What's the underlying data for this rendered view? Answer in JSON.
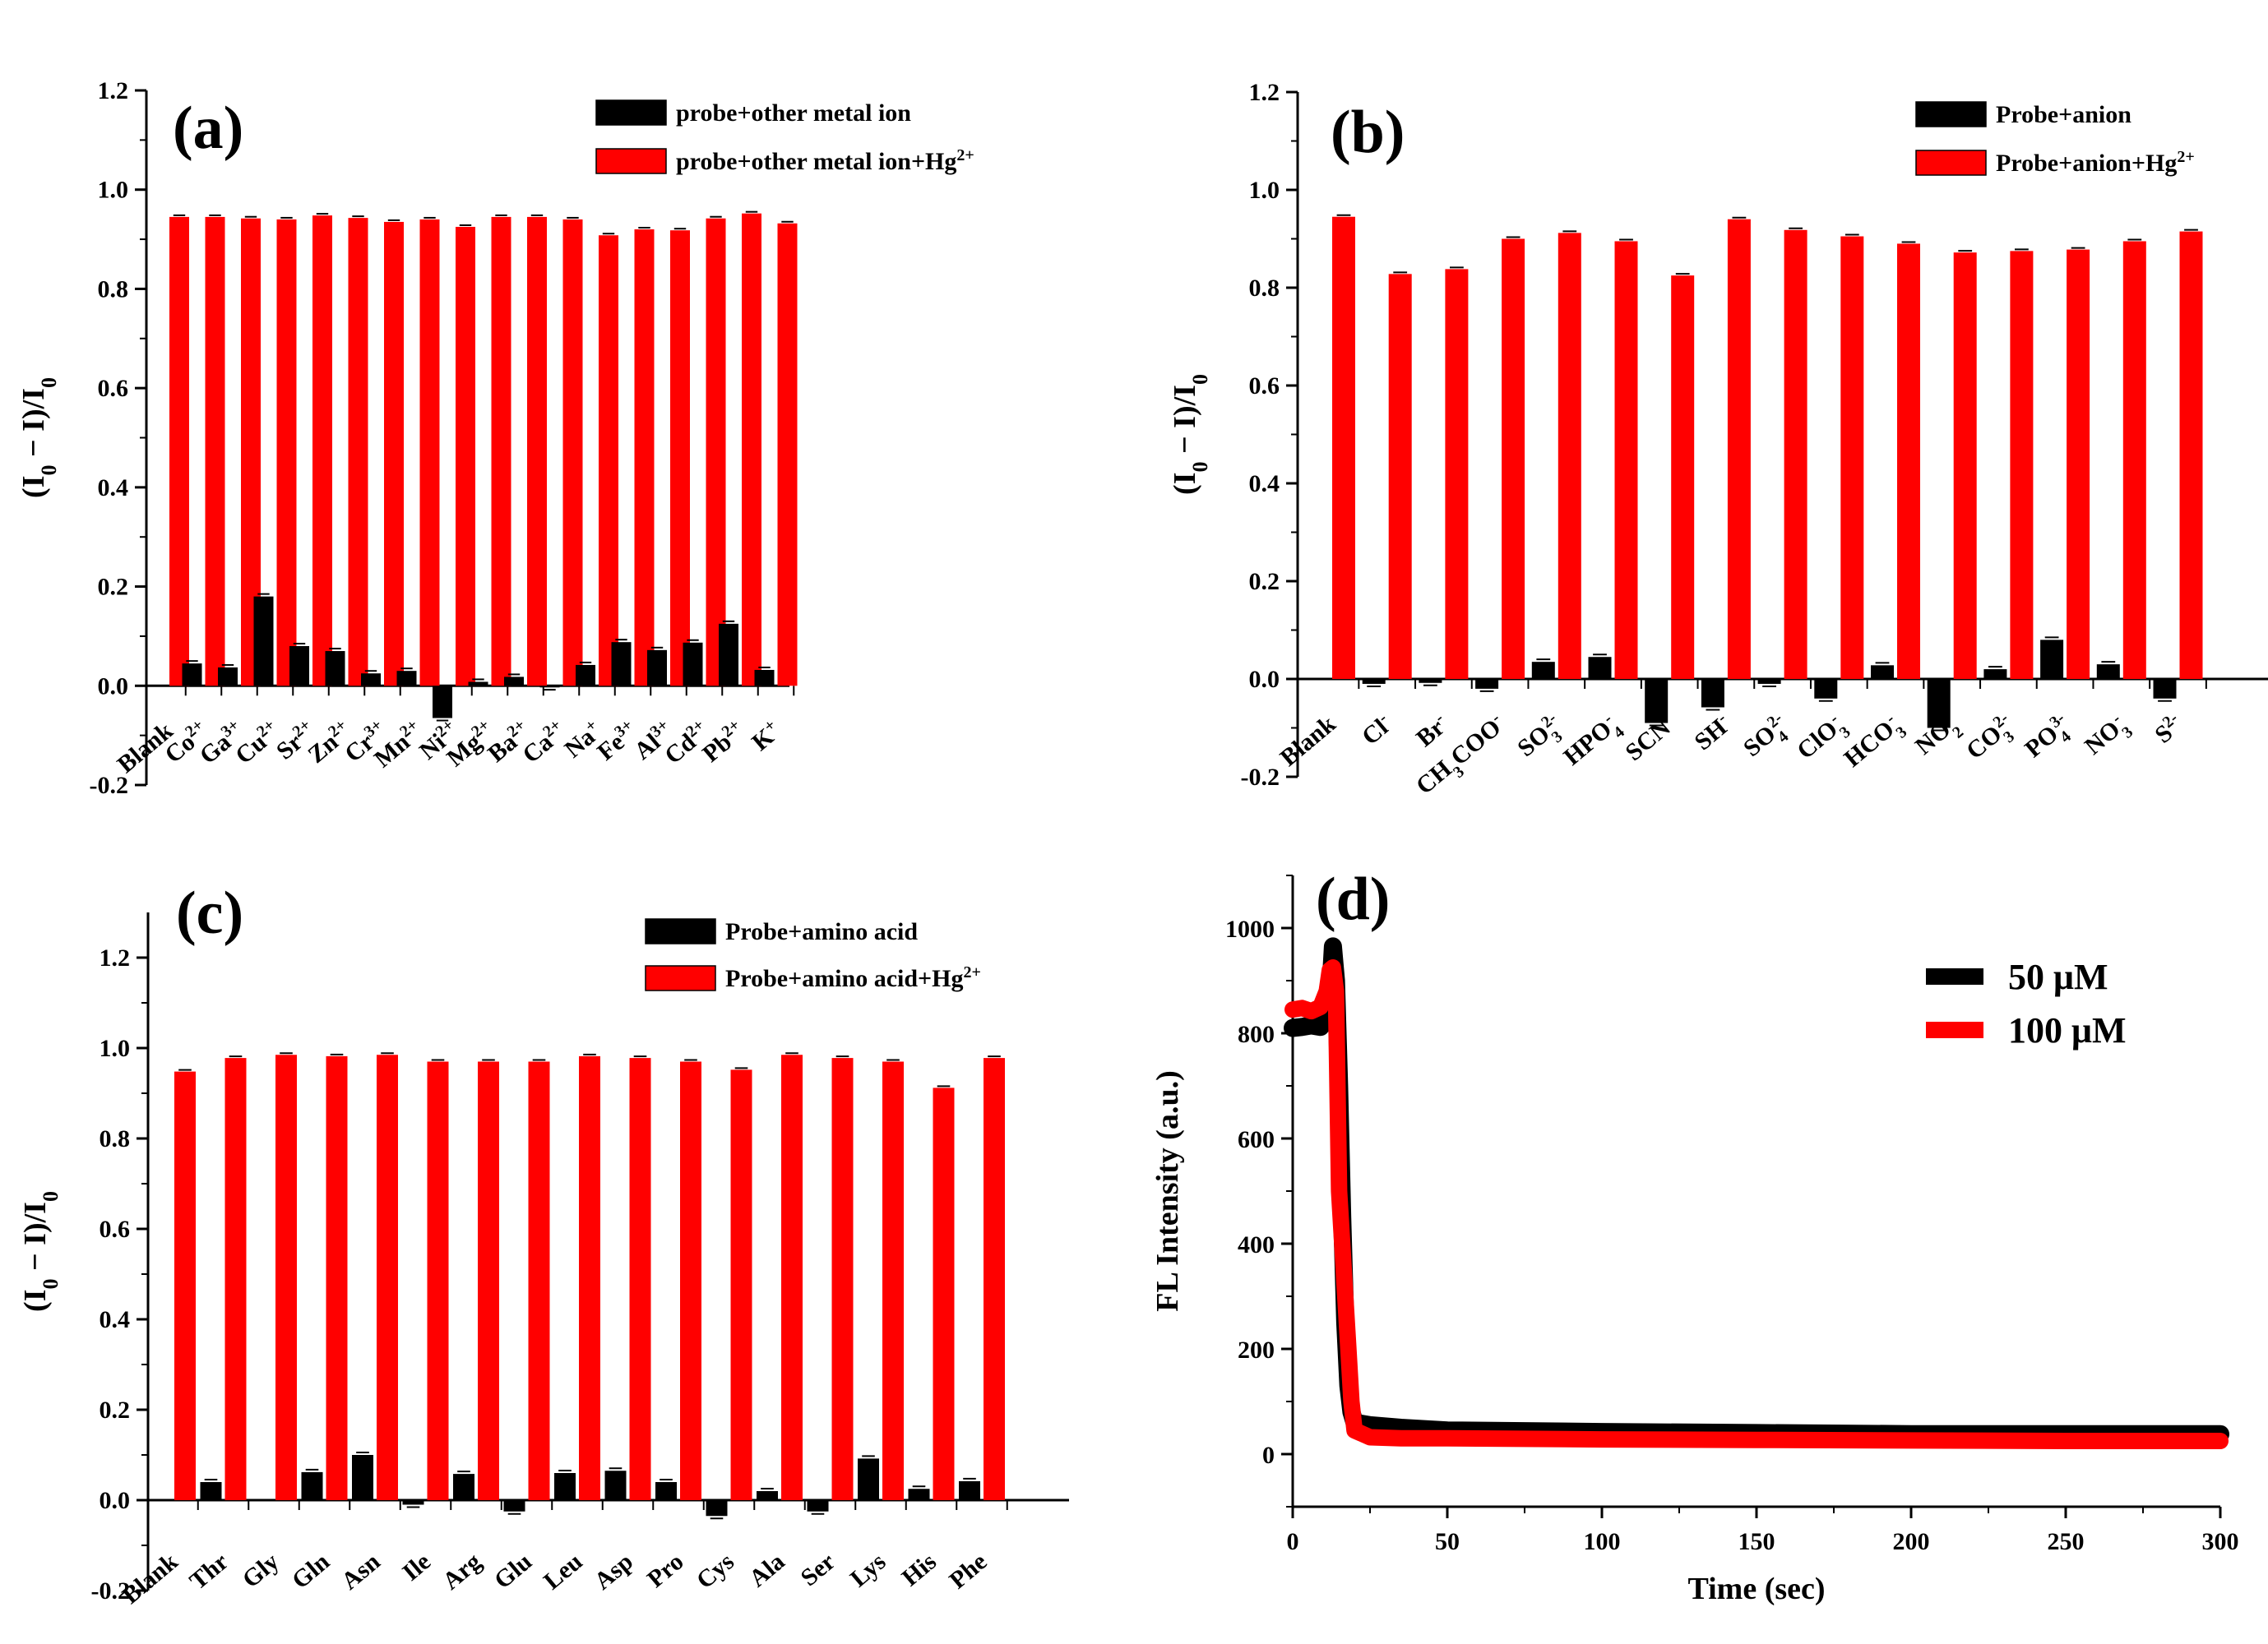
{
  "colors": {
    "probe": "#000000",
    "probe_hg": "#ff0000",
    "axis": "#000000"
  },
  "chart_data": [
    {
      "id": "a",
      "type": "bar",
      "panel_label": "(a)",
      "ylabel": "(I0 − I)/I0",
      "ylim": [
        -0.2,
        1.2
      ],
      "yticks": [
        "-0.2",
        "0.0",
        "0.2",
        "0.4",
        "0.6",
        "0.8",
        "1.0",
        "1.2"
      ],
      "categories": [
        {
          "base": "Blank",
          "sup": ""
        },
        {
          "base": "Co",
          "sup": "2+"
        },
        {
          "base": "Ga",
          "sup": "3+"
        },
        {
          "base": "Cu",
          "sup": "2+"
        },
        {
          "base": "Sr",
          "sup": "2+"
        },
        {
          "base": "Zn",
          "sup": "2+"
        },
        {
          "base": "Cr",
          "sup": "3+"
        },
        {
          "base": "Mn",
          "sup": "2+"
        },
        {
          "base": "Ni",
          "sup": "2+"
        },
        {
          "base": "Mg",
          "sup": "2+"
        },
        {
          "base": "Ba",
          "sup": "2+"
        },
        {
          "base": "Ca",
          "sup": "2+"
        },
        {
          "base": "Na",
          "sup": "+"
        },
        {
          "base": "Fe",
          "sup": "3+"
        },
        {
          "base": "Al",
          "sup": "3+"
        },
        {
          "base": "Cd",
          "sup": "2+"
        },
        {
          "base": "Pb",
          "sup": "2+"
        },
        {
          "base": "K",
          "sup": "+"
        }
      ],
      "series": [
        {
          "name": "probe+other metal ion",
          "color": "#000000",
          "values": [
            null,
            0.045,
            0.037,
            0.18,
            0.08,
            0.07,
            0.025,
            0.03,
            -0.065,
            0.008,
            0.018,
            -0.003,
            0.042,
            0.088,
            0.072,
            0.087,
            0.125,
            0.032
          ]
        },
        {
          "name": "probe+other metal ion+Hg2+",
          "color": "#ff0000",
          "values": [
            0.945,
            0.945,
            0.942,
            0.94,
            0.948,
            0.943,
            0.935,
            0.94,
            0.925,
            0.945,
            0.945,
            0.94,
            0.908,
            0.92,
            0.918,
            0.942,
            0.952,
            0.932
          ]
        }
      ],
      "legend": [
        {
          "text": "probe+other metal ion",
          "sup": ""
        },
        {
          "text": "probe+other metal ion+Hg",
          "sup": "2+"
        }
      ]
    },
    {
      "id": "b",
      "type": "bar",
      "panel_label": "(b)",
      "ylabel": "(I0 − I)/I0",
      "ylim": [
        -0.2,
        1.2
      ],
      "yticks": [
        "-0.2",
        "0.0",
        "0.2",
        "0.4",
        "0.6",
        "0.8",
        "1.0",
        "1.2"
      ],
      "categories": [
        {
          "base": "Blank",
          "sub": "",
          "sup": ""
        },
        {
          "base": "Cl",
          "sub": "",
          "sup": "-"
        },
        {
          "base": "Br",
          "sub": "",
          "sup": "-"
        },
        {
          "base": "CH3COO",
          "sub": "",
          "sup": "-"
        },
        {
          "base": "SO",
          "sub": "3",
          "sup": "2-"
        },
        {
          "base": "HPO",
          "sub": "4",
          "sup": "-"
        },
        {
          "base": "SCN",
          "sub": "",
          "sup": "-"
        },
        {
          "base": "SH",
          "sub": "",
          "sup": "-"
        },
        {
          "base": "SO",
          "sub": "4",
          "sup": "2-"
        },
        {
          "base": "ClO",
          "sub": "3",
          "sup": "-"
        },
        {
          "base": "HCO",
          "sub": "3",
          "sup": "-"
        },
        {
          "base": "NO",
          "sub": "2",
          "sup": "-"
        },
        {
          "base": "CO",
          "sub": "3",
          "sup": "2-"
        },
        {
          "base": "PO",
          "sub": "4",
          "sup": "3-"
        },
        {
          "base": "NO",
          "sub": "3",
          "sup": "-"
        },
        {
          "base": "S",
          "sub": "",
          "sup": "2-"
        }
      ],
      "series": [
        {
          "name": "Probe+anion",
          "color": "#000000",
          "values": [
            null,
            -0.01,
            -0.008,
            -0.02,
            0.035,
            0.045,
            -0.09,
            -0.058,
            -0.01,
            -0.04,
            0.028,
            -0.1,
            0.02,
            0.08,
            0.03,
            -0.04
          ]
        },
        {
          "name": "Probe+anion+Hg2+",
          "color": "#ff0000",
          "values": [
            0.945,
            0.828,
            0.838,
            0.9,
            0.912,
            0.895,
            0.825,
            0.94,
            0.918,
            0.905,
            0.89,
            0.872,
            0.875,
            0.878,
            0.895,
            0.915
          ]
        }
      ],
      "legend": [
        {
          "text": "Probe+anion",
          "sup": ""
        },
        {
          "text": "Probe+anion+Hg",
          "sup": "2+"
        }
      ]
    },
    {
      "id": "c",
      "type": "bar",
      "panel_label": "(c)",
      "ylabel": "(I0 − I)/I0",
      "ylim": [
        -0.2,
        1.3
      ],
      "yticks": [
        "-0.2",
        "0.0",
        "0.2",
        "0.4",
        "0.6",
        "0.8",
        "1.0",
        "1.2"
      ],
      "categories": [
        {
          "base": "Blank"
        },
        {
          "base": "Thr"
        },
        {
          "base": "Gly"
        },
        {
          "base": "Gln"
        },
        {
          "base": "Asn"
        },
        {
          "base": "Ile"
        },
        {
          "base": "Arg"
        },
        {
          "base": "Glu"
        },
        {
          "base": "Leu"
        },
        {
          "base": "Asp"
        },
        {
          "base": "Pro"
        },
        {
          "base": "Cys"
        },
        {
          "base": "Ala"
        },
        {
          "base": "Ser"
        },
        {
          "base": "Lys"
        },
        {
          "base": "His"
        },
        {
          "base": "Phe"
        }
      ],
      "series": [
        {
          "name": "Probe+amino acid",
          "color": "#000000",
          "values": [
            null,
            0.04,
            null,
            0.062,
            0.1,
            -0.01,
            0.058,
            -0.025,
            0.06,
            0.065,
            0.04,
            -0.035,
            0.02,
            -0.025,
            0.092,
            0.025,
            0.042
          ]
        },
        {
          "name": "Probe+amino acid+Hg2+",
          "color": "#ff0000",
          "values": [
            0.948,
            0.978,
            0.985,
            0.982,
            0.985,
            0.97,
            0.97,
            0.97,
            0.982,
            0.978,
            0.97,
            0.952,
            0.985,
            0.978,
            0.97,
            0.912,
            0.978
          ]
        }
      ],
      "legend": [
        {
          "text": "Probe+amino acid",
          "sup": ""
        },
        {
          "text": "Probe+amino acid+Hg",
          "sup": "2+"
        }
      ]
    },
    {
      "id": "d",
      "type": "scatter",
      "panel_label": "(d)",
      "xlabel": "Time (sec)",
      "ylabel": "FL Intensity (a.u.)",
      "xlim": [
        0,
        300
      ],
      "ylim": [
        -100,
        1100
      ],
      "xticks": [
        "0",
        "50",
        "100",
        "150",
        "200",
        "250",
        "300"
      ],
      "yticks": [
        "0",
        "200",
        "400",
        "600",
        "800",
        "1000"
      ],
      "series": [
        {
          "name": "50 μM",
          "color": "#000000",
          "points": [
            [
              0,
              810
            ],
            [
              3,
              812
            ],
            [
              6,
              815
            ],
            [
              9,
              812
            ],
            [
              11,
              830
            ],
            [
              12,
              860
            ],
            [
              13,
              965
            ],
            [
              14,
              900
            ],
            [
              15,
              700
            ],
            [
              16,
              450
            ],
            [
              17,
              250
            ],
            [
              18,
              130
            ],
            [
              19,
              80
            ],
            [
              20,
              60
            ],
            [
              25,
              55
            ],
            [
              35,
              50
            ],
            [
              50,
              45
            ],
            [
              100,
              42
            ],
            [
              150,
              40
            ],
            [
              200,
              38
            ],
            [
              250,
              38
            ],
            [
              300,
              38
            ]
          ]
        },
        {
          "name": "100 μM",
          "color": "#ff0000",
          "points": [
            [
              0,
              845
            ],
            [
              3,
              848
            ],
            [
              6,
              842
            ],
            [
              9,
              850
            ],
            [
              11,
              880
            ],
            [
              12,
              920
            ],
            [
              13,
              925
            ],
            [
              14,
              880
            ],
            [
              15,
              500
            ],
            [
              16,
              400
            ],
            [
              17,
              300
            ],
            [
              18,
              200
            ],
            [
              19,
              100
            ],
            [
              20,
              45
            ],
            [
              25,
              32
            ],
            [
              35,
              30
            ],
            [
              50,
              30
            ],
            [
              100,
              28
            ],
            [
              150,
              27
            ],
            [
              200,
              26
            ],
            [
              250,
              25
            ],
            [
              300,
              25
            ]
          ]
        }
      ],
      "legend": [
        {
          "text": "50 μM"
        },
        {
          "text": "100 μM"
        }
      ]
    }
  ]
}
